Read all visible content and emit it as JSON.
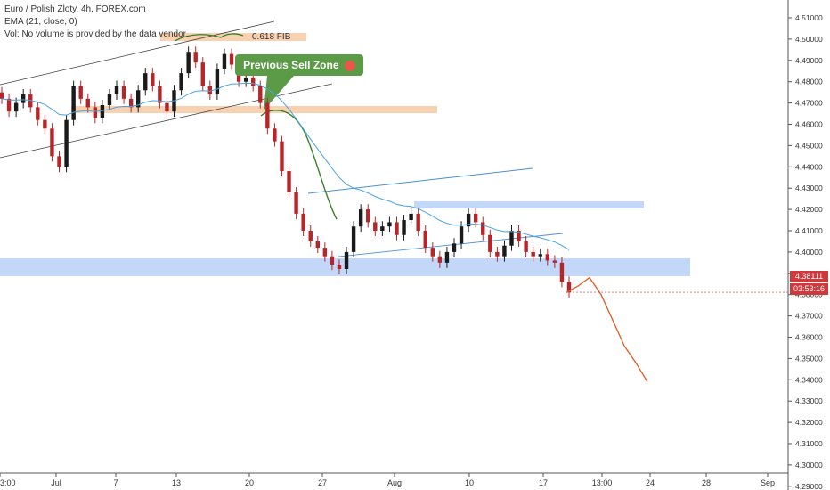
{
  "legend": {
    "title": "Euro / Polish Zloty, 4h, FOREX.com",
    "ema": "EMA (21, close, 0)",
    "volume": "Vol: No volume is provided by the data vendor."
  },
  "annotations": {
    "fib_label": "0.618 FIB",
    "callout": "Previous Sell Zone",
    "callout_icon": "pig-face-icon"
  },
  "price_tags": {
    "last_price": "4.38111",
    "countdown": "03:53:16"
  },
  "colors": {
    "up_candle": "#1a1a1a",
    "down_candle": "#b5262b",
    "ema": "#4aa3df",
    "fib_zone": "#f7c9a2",
    "support_zone": "#aac8f5",
    "callout": "#5b9a47",
    "forecast": "#e05a1f",
    "channel": "#3f3f3f",
    "triangle": "#4a90d9",
    "price_tag": "#d0393b"
  },
  "chart_data": {
    "type": "candlestick",
    "y_range": [
      4.285,
      4.512
    ],
    "y_ticks": [
      "4.51000",
      "4.50000",
      "4.49000",
      "4.48000",
      "4.47000",
      "4.46000",
      "4.45000",
      "4.44000",
      "4.43000",
      "4.42000",
      "4.41000",
      "4.40000",
      "4.39000",
      "4.38000",
      "4.37000",
      "4.36000",
      "4.35000",
      "4.34000",
      "4.33000",
      "4.32000",
      "4.31000",
      "4.30000",
      "4.29000"
    ],
    "x_ticks": [
      "3:00",
      "Jul",
      "7",
      "13",
      "20",
      "27",
      "Aug",
      "10",
      "17",
      "13:00",
      "24",
      "28",
      "Sep"
    ],
    "close_path": [
      4.472,
      4.466,
      4.47,
      4.474,
      4.468,
      4.462,
      4.458,
      4.445,
      4.44,
      4.462,
      4.478,
      4.472,
      4.468,
      4.463,
      4.469,
      4.474,
      4.478,
      4.472,
      4.468,
      4.476,
      4.484,
      4.478,
      4.47,
      4.466,
      4.476,
      4.484,
      4.494,
      4.489,
      4.478,
      4.474,
      4.486,
      4.493,
      4.488,
      4.48,
      4.482,
      4.478,
      4.47,
      4.458,
      4.452,
      4.438,
      4.428,
      4.418,
      4.41,
      4.405,
      4.402,
      4.398,
      4.394,
      4.392,
      4.4,
      4.412,
      4.42,
      4.414,
      4.41,
      4.412,
      4.414,
      4.408,
      4.415,
      4.418,
      4.41,
      4.402,
      4.398,
      4.395,
      4.4,
      4.404,
      4.412,
      4.418,
      4.414,
      4.408,
      4.4,
      4.398,
      4.403,
      4.41,
      4.405,
      4.4,
      4.398,
      4.399,
      4.396,
      4.395,
      4.386,
      4.381
    ],
    "ema_period": 21,
    "last_price": 4.38111,
    "forecast_path": [
      4.381,
      4.384,
      4.388,
      4.38,
      4.368,
      4.356,
      4.348,
      4.339
    ]
  }
}
